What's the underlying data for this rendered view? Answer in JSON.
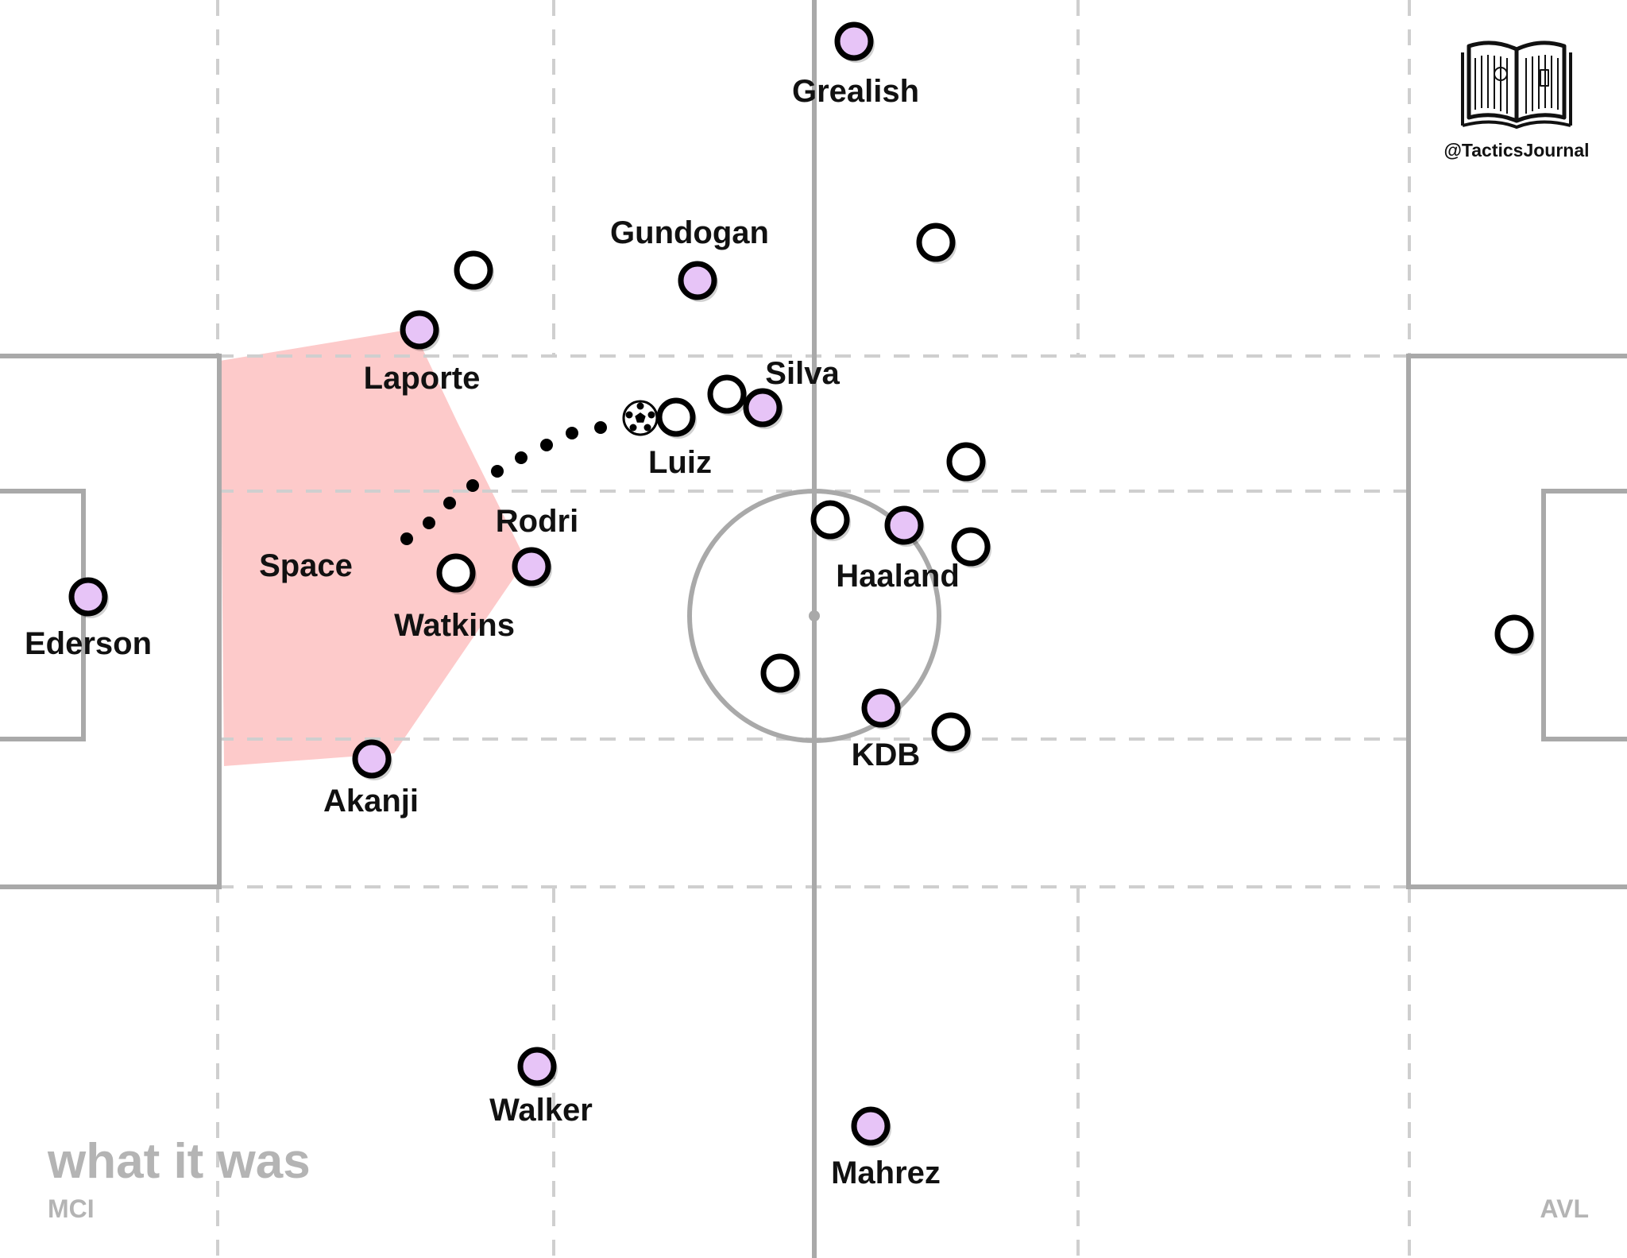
{
  "colors": {
    "line": "#a9a9a9",
    "dashed": "#cfcfcf",
    "space_zone": "#fdcaca",
    "home_player": "#e7c4f7",
    "away_player": "#ffffff",
    "outline": "#000000",
    "caption": "#b4b4b4"
  },
  "branding": {
    "icon": "book-pitch-icon",
    "handle": "@TacticsJournal"
  },
  "caption": {
    "title": "what it was",
    "home_team": "MCI",
    "away_team": "AVL"
  },
  "zone_label": "Space",
  "home_players": [
    {
      "name": "Grealish"
    },
    {
      "name": "Gundogan"
    },
    {
      "name": "Laporte"
    },
    {
      "name": "Silva"
    },
    {
      "name": "Rodri"
    },
    {
      "name": "Ederson"
    },
    {
      "name": "Haaland"
    },
    {
      "name": "KDB"
    },
    {
      "name": "Akanji"
    },
    {
      "name": "Walker"
    },
    {
      "name": "Mahrez"
    }
  ],
  "away_players": [
    {
      "name": "Watkins"
    },
    {
      "name": "Luiz"
    },
    {
      "name": ""
    },
    {
      "name": ""
    },
    {
      "name": ""
    },
    {
      "name": ""
    },
    {
      "name": ""
    },
    {
      "name": ""
    },
    {
      "name": ""
    },
    {
      "name": ""
    },
    {
      "name": ""
    }
  ],
  "ball": {
    "icon": "football-icon"
  },
  "pass_line": {
    "style": "dotted"
  }
}
